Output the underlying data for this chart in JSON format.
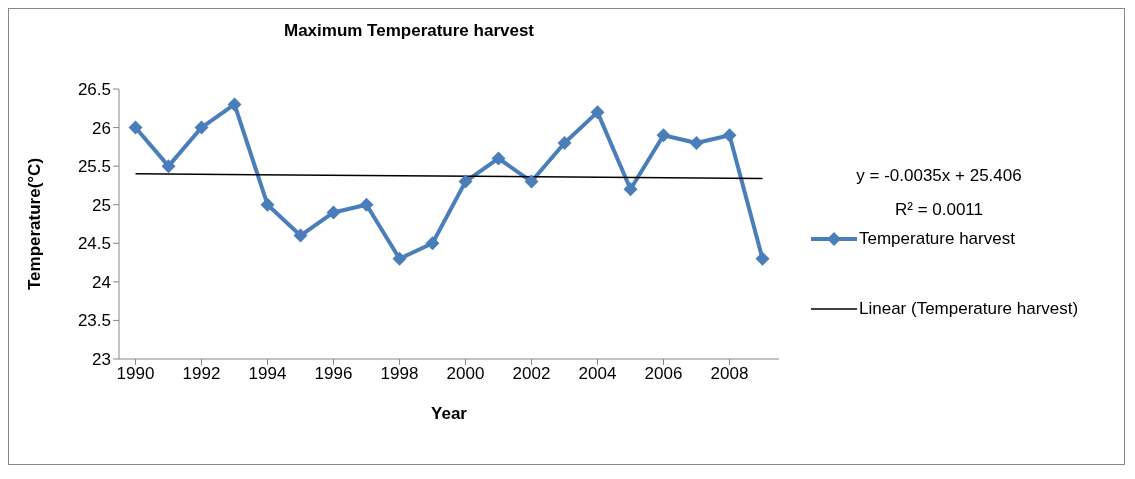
{
  "chart_data": {
    "type": "line",
    "title": "Maximum Temperature harvest",
    "xlabel": "Year",
    "ylabel": "Temperature(°C)",
    "x": [
      1990,
      1991,
      1992,
      1993,
      1994,
      1995,
      1996,
      1997,
      1998,
      1999,
      2000,
      2001,
      2002,
      2003,
      2004,
      2005,
      2006,
      2007,
      2008,
      2009
    ],
    "series": [
      {
        "name": "Temperature harvest",
        "color": "#4a7ebb",
        "marker": "diamond",
        "values": [
          26.0,
          25.5,
          26.0,
          26.3,
          25.0,
          24.6,
          24.9,
          25.0,
          24.3,
          24.5,
          25.3,
          25.6,
          25.3,
          25.8,
          26.2,
          25.2,
          25.9,
          25.8,
          25.9,
          24.3
        ]
      },
      {
        "name": "Linear (Temperature harvest)",
        "type": "line",
        "color": "#000000",
        "marker": "none",
        "x": [
          1990,
          2009
        ],
        "values": [
          25.4,
          25.34
        ]
      }
    ],
    "xlim": [
      1989.5,
      2009.5
    ],
    "xticks": [
      1990,
      1992,
      1994,
      1996,
      1998,
      2000,
      2002,
      2004,
      2006,
      2008
    ],
    "ylim": [
      23,
      26.5
    ],
    "yticks": [
      23,
      23.5,
      24,
      24.5,
      25,
      25.5,
      26,
      26.5
    ],
    "grid": false,
    "legend": "right",
    "line_style": "solid",
    "annotations": [
      "y = -0.0035x + 25.406",
      "R² = 0.0011"
    ]
  }
}
